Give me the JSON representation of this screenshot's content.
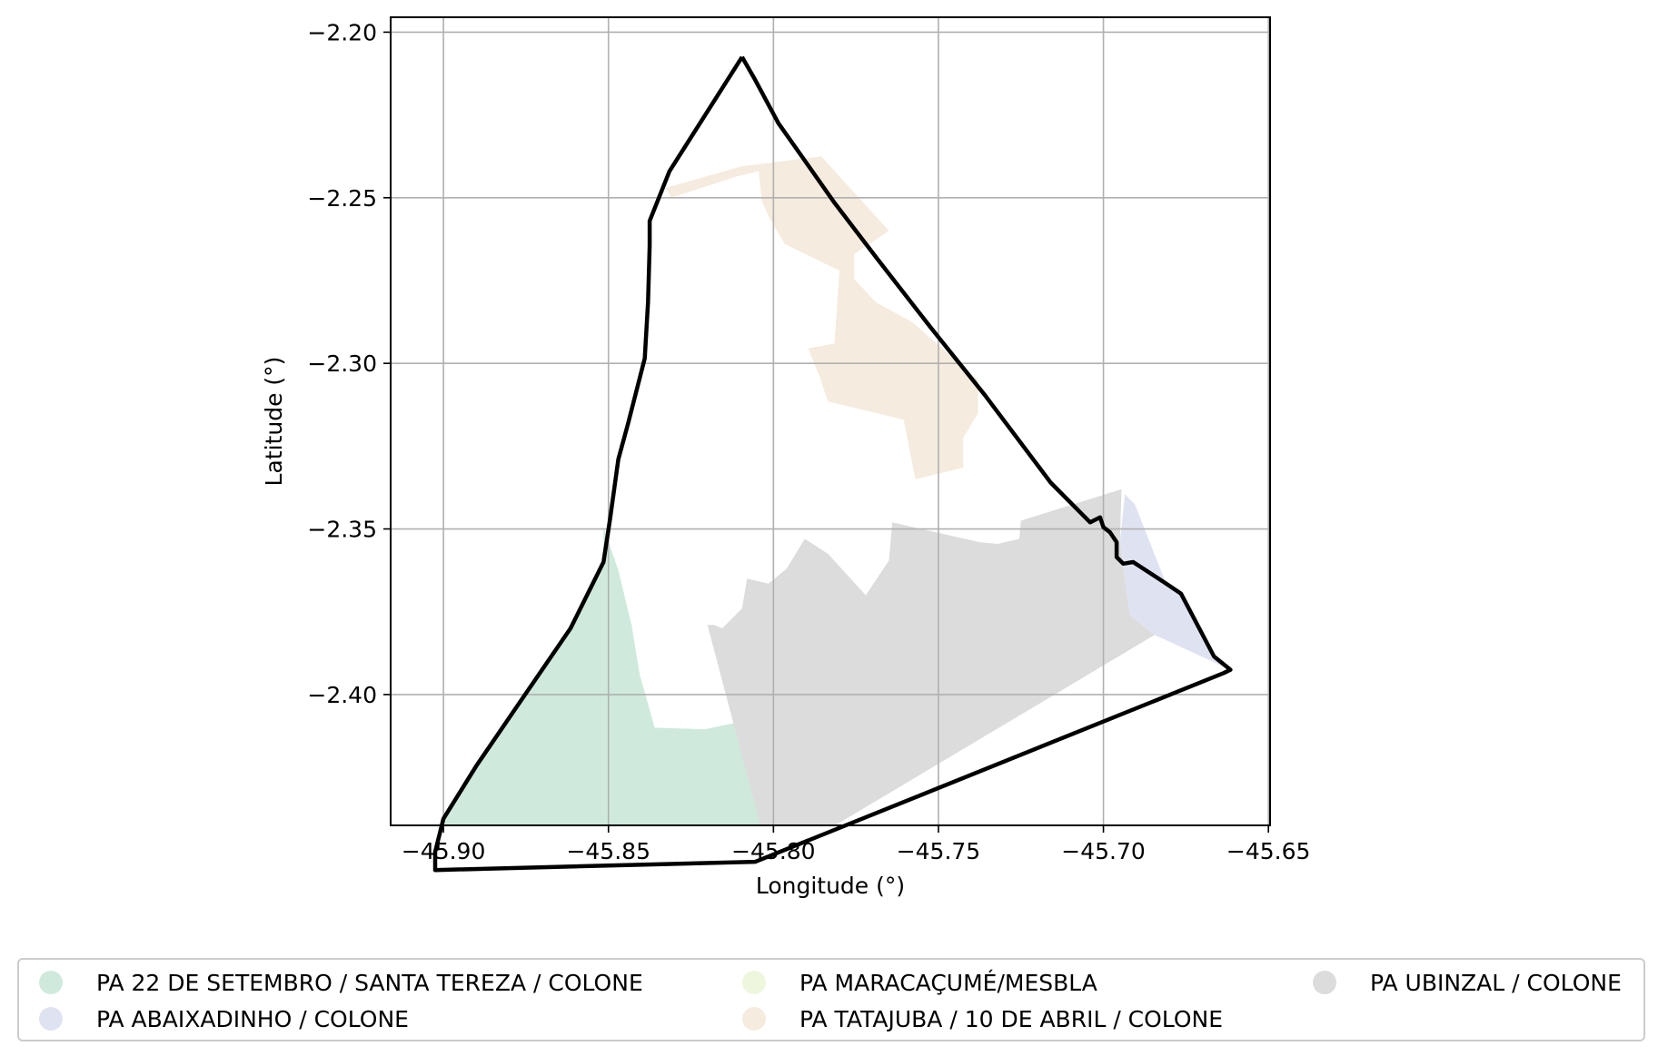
{
  "chart_data": {
    "type": "map",
    "xlabel": "Longitude (°)",
    "ylabel": "Latitude (°)",
    "xlim": [
      -45.916,
      -45.6495
    ],
    "ylim": [
      -2.4395,
      -2.1955
    ],
    "grid": true,
    "x_ticks": [
      {
        "value": -45.9,
        "label": "−45.90"
      },
      {
        "value": -45.85,
        "label": "−45.85"
      },
      {
        "value": -45.8,
        "label": "−45.80"
      },
      {
        "value": -45.75,
        "label": "−45.75"
      },
      {
        "value": -45.7,
        "label": "−45.70"
      },
      {
        "value": -45.65,
        "label": "−45.65"
      }
    ],
    "y_ticks": [
      {
        "value": -2.2,
        "label": "−2.20"
      },
      {
        "value": -2.25,
        "label": "−2.25"
      },
      {
        "value": -2.3,
        "label": "−2.30"
      },
      {
        "value": -2.35,
        "label": "−2.35"
      },
      {
        "value": -2.4,
        "label": "−2.40"
      }
    ],
    "boundary": {
      "color": "#000000",
      "points": [
        [
          -45.8095,
          -2.2075
        ],
        [
          -45.8055,
          -2.2145
        ],
        [
          -45.7985,
          -2.2275
        ],
        [
          -45.79,
          -2.2395
        ],
        [
          -45.7815,
          -2.2515
        ],
        [
          -45.7685,
          -2.2685
        ],
        [
          -45.7525,
          -2.289
        ],
        [
          -45.736,
          -2.3095
        ],
        [
          -45.716,
          -2.336
        ],
        [
          -45.704,
          -2.348
        ],
        [
          -45.701,
          -2.3465
        ],
        [
          -45.7,
          -2.3495
        ],
        [
          -45.698,
          -2.351
        ],
        [
          -45.696,
          -2.354
        ],
        [
          -45.696,
          -2.3585
        ],
        [
          -45.694,
          -2.3605
        ],
        [
          -45.691,
          -2.36
        ],
        [
          -45.681,
          -2.3665
        ],
        [
          -45.6765,
          -2.3695
        ],
        [
          -45.6665,
          -2.3885
        ],
        [
          -45.6615,
          -2.3925
        ],
        [
          -45.6635,
          -2.3935
        ],
        [
          -45.8055,
          -2.4505
        ],
        [
          -45.9025,
          -2.453
        ],
        [
          -45.9025,
          -2.4475
        ],
        [
          -45.9,
          -2.4375
        ],
        [
          -45.89,
          -2.4215
        ],
        [
          -45.878,
          -2.404
        ],
        [
          -45.8615,
          -2.38
        ],
        [
          -45.8515,
          -2.36
        ],
        [
          -45.8495,
          -2.347
        ],
        [
          -45.847,
          -2.329
        ],
        [
          -45.844,
          -2.318
        ],
        [
          -45.839,
          -2.2985
        ],
        [
          -45.838,
          -2.2815
        ],
        [
          -45.8375,
          -2.2645
        ],
        [
          -45.8375,
          -2.257
        ],
        [
          -45.8315,
          -2.242
        ],
        [
          -45.8095,
          -2.2075
        ]
      ]
    },
    "series": [
      {
        "name": "PA 22 DE SETEMBRO / SANTA TEREZA / COLONE",
        "color": "#cfeadc",
        "polygons": [
          [
            [
              -45.8515,
              -2.3495
            ],
            [
              -45.847,
              -2.3625
            ],
            [
              -45.843,
              -2.379
            ],
            [
              -45.8415,
              -2.388
            ],
            [
              -45.8405,
              -2.394
            ],
            [
              -45.836,
              -2.41
            ],
            [
              -45.821,
              -2.4105
            ],
            [
              -45.809,
              -2.408
            ],
            [
              -45.8025,
              -2.443
            ],
            [
              -45.902,
              -2.4465
            ],
            [
              -45.9,
              -2.4375
            ],
            [
              -45.89,
              -2.4215
            ],
            [
              -45.878,
              -2.404
            ],
            [
              -45.8615,
              -2.38
            ],
            [
              -45.8515,
              -2.36
            ],
            [
              -45.8515,
              -2.3495
            ]
          ]
        ]
      },
      {
        "name": "PA ABAIXADINHO / COLONE",
        "color": "#dfe3f1",
        "polygons": [
          [
            [
              -45.6935,
              -2.3395
            ],
            [
              -45.6905,
              -2.3425
            ],
            [
              -45.681,
              -2.3665
            ],
            [
              -45.6765,
              -2.3695
            ],
            [
              -45.6665,
              -2.3885
            ],
            [
              -45.6615,
              -2.3925
            ],
            [
              -45.6845,
              -2.382
            ],
            [
              -45.692,
              -2.376
            ],
            [
              -45.695,
              -2.354
            ],
            [
              -45.6935,
              -2.3395
            ]
          ]
        ]
      },
      {
        "name": "PA MARACAÇUMÉ/MESBLA",
        "color": "#eef7dd",
        "polygons": []
      },
      {
        "name": "PA TATAJUBA / 10 DE ABRIL / COLONE",
        "color": "#f5ebde",
        "polygons": [
          [
            [
              -45.8325,
              -2.247
            ],
            [
              -45.8095,
              -2.2405
            ],
            [
              -45.7855,
              -2.2375
            ],
            [
              -45.765,
              -2.26
            ],
            [
              -45.7755,
              -2.267
            ],
            [
              -45.7755,
              -2.2745
            ],
            [
              -45.769,
              -2.2815
            ],
            [
              -45.758,
              -2.2875
            ],
            [
              -45.738,
              -2.305
            ],
            [
              -45.738,
              -2.315
            ],
            [
              -45.7425,
              -2.3225
            ],
            [
              -45.7425,
              -2.3315
            ],
            [
              -45.757,
              -2.335
            ],
            [
              -45.7605,
              -2.317
            ],
            [
              -45.7835,
              -2.3115
            ],
            [
              -45.786,
              -2.304
            ],
            [
              -45.7895,
              -2.2955
            ],
            [
              -45.7815,
              -2.294
            ],
            [
              -45.78,
              -2.272
            ],
            [
              -45.7965,
              -2.264
            ],
            [
              -45.801,
              -2.2565
            ],
            [
              -45.8035,
              -2.251
            ],
            [
              -45.8045,
              -2.242
            ],
            [
              -45.811,
              -2.2435
            ],
            [
              -45.831,
              -2.25
            ],
            [
              -45.8325,
              -2.247
            ]
          ]
        ]
      },
      {
        "name": "PA UBINZAL / COLONE",
        "color": "#dcdcdc",
        "polygons": [
          [
            [
              -45.6945,
              -2.338
            ],
            [
              -45.725,
              -2.3475
            ],
            [
              -45.7255,
              -2.353
            ],
            [
              -45.732,
              -2.3545
            ],
            [
              -45.7375,
              -2.354
            ],
            [
              -45.764,
              -2.348
            ],
            [
              -45.765,
              -2.3595
            ],
            [
              -45.772,
              -2.37
            ],
            [
              -45.7835,
              -2.3575
            ],
            [
              -45.7905,
              -2.353
            ],
            [
              -45.796,
              -2.362
            ],
            [
              -45.8015,
              -2.3665
            ],
            [
              -45.808,
              -2.365
            ],
            [
              -45.8095,
              -2.374
            ],
            [
              -45.8155,
              -2.38
            ],
            [
              -45.818,
              -2.379
            ],
            [
              -45.82,
              -2.379
            ],
            [
              -45.803,
              -2.443
            ],
            [
              -45.799,
              -2.45
            ],
            [
              -45.6845,
              -2.382
            ],
            [
              -45.692,
              -2.376
            ],
            [
              -45.695,
              -2.354
            ],
            [
              -45.6945,
              -2.338
            ]
          ]
        ]
      }
    ],
    "legend": {
      "placement": "bottom-center",
      "columns": 3,
      "entries": [
        {
          "label": "PA 22 DE SETEMBRO / SANTA TEREZA / COLONE",
          "color": "#cfeadc"
        },
        {
          "label": "PA ABAIXADINHO / COLONE",
          "color": "#dfe3f1"
        },
        {
          "label": "PA MARACAÇUMÉ/MESBLA",
          "color": "#eef7dd"
        },
        {
          "label": "PA TATAJUBA / 10 DE ABRIL / COLONE",
          "color": "#f5ebde"
        },
        {
          "label": "PA UBINZAL / COLONE",
          "color": "#dcdcdc"
        }
      ]
    }
  }
}
